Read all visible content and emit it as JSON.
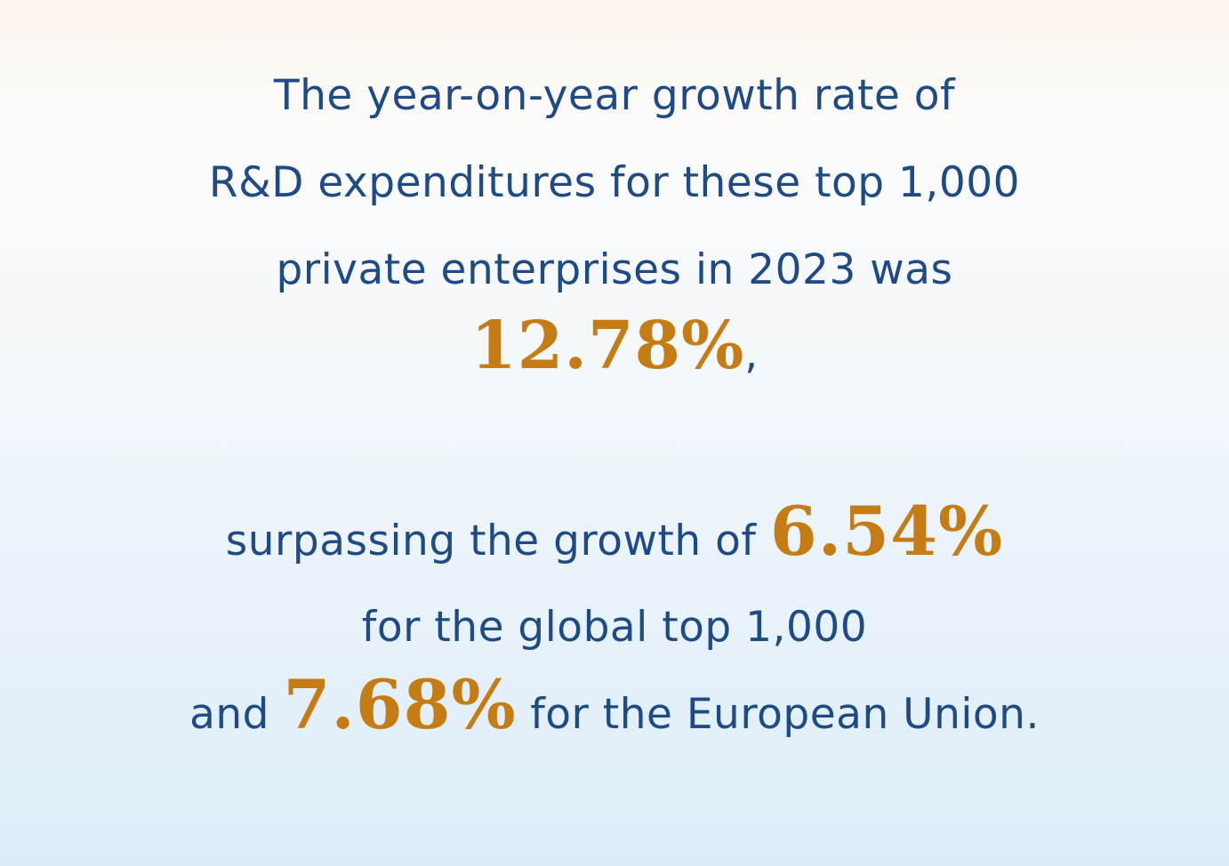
{
  "lines": {
    "l1": "The year-on-year growth rate of",
    "l2": "R&D expenditures for these top 1,000",
    "l3": "private enterprises in 2023 was",
    "l4_value": "12.78%",
    "l4_tail": ",",
    "l5_head": "surpassing the growth of ",
    "l5_value": "6.54%",
    "l6": "for the global top 1,000",
    "l7_head": "and ",
    "l7_value": "7.68%",
    "l7_tail": " for the European Union."
  },
  "colors": {
    "text": "#1e4b86",
    "highlight": "#c67c14"
  }
}
